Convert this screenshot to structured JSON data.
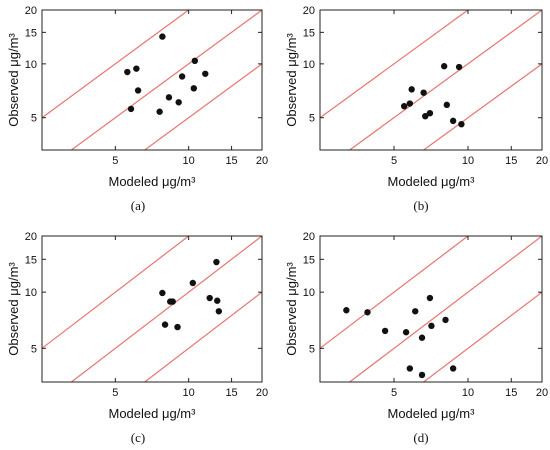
{
  "colors": {
    "reference_line": "#e8746e",
    "point": "#111111",
    "frame": "#222222"
  },
  "chart_data": [
    {
      "type": "scatter",
      "panel_label": "(a)",
      "xlabel": "Modeled μg/m³",
      "ylabel": "Observed μg/m³",
      "xscale": "log",
      "yscale": "log",
      "xlim": [
        2.5,
        20
      ],
      "ylim": [
        3.3,
        20
      ],
      "xticks": [
        5,
        10,
        15,
        20
      ],
      "yticks": [
        5,
        10,
        15,
        20
      ],
      "reference_lines": [
        "y = 2x",
        "y = x",
        "y = x/2"
      ],
      "points": [
        [
          5.6,
          9.0
        ],
        [
          6.1,
          9.4
        ],
        [
          6.2,
          7.1
        ],
        [
          5.8,
          5.6
        ],
        [
          7.8,
          14.2
        ],
        [
          7.6,
          5.4
        ],
        [
          8.3,
          6.5
        ],
        [
          9.1,
          6.1
        ],
        [
          9.4,
          8.5
        ],
        [
          10.6,
          10.4
        ],
        [
          10.5,
          7.3
        ],
        [
          11.7,
          8.8
        ]
      ]
    },
    {
      "type": "scatter",
      "panel_label": "(b)",
      "xlabel": "Modeled μg/m³",
      "ylabel": "Observed μg/m³",
      "xscale": "log",
      "yscale": "log",
      "xlim": [
        2.5,
        20
      ],
      "ylim": [
        3.3,
        20
      ],
      "xticks": [
        5,
        10,
        15,
        20
      ],
      "yticks": [
        5,
        10,
        15,
        20
      ],
      "reference_lines": [
        "y = 2x",
        "y = x",
        "y = x/2"
      ],
      "points": [
        [
          5.5,
          5.8
        ],
        [
          5.8,
          6.0
        ],
        [
          5.9,
          7.2
        ],
        [
          6.6,
          6.9
        ],
        [
          6.7,
          5.1
        ],
        [
          7.0,
          5.3
        ],
        [
          8.0,
          9.7
        ],
        [
          8.2,
          5.9
        ],
        [
          8.7,
          4.8
        ],
        [
          9.2,
          9.6
        ],
        [
          9.4,
          4.6
        ]
      ]
    },
    {
      "type": "scatter",
      "panel_label": "(c)",
      "xlabel": "Modeled μg/m³",
      "ylabel": "Observed μg/m³",
      "xscale": "log",
      "yscale": "log",
      "xlim": [
        2.5,
        20
      ],
      "ylim": [
        3.3,
        20
      ],
      "xticks": [
        5,
        10,
        15,
        20
      ],
      "yticks": [
        5,
        10,
        15,
        20
      ],
      "reference_lines": [
        "y = 2x",
        "y = x",
        "y = x/2"
      ],
      "points": [
        [
          7.8,
          9.9
        ],
        [
          8.0,
          6.7
        ],
        [
          8.4,
          8.9
        ],
        [
          8.6,
          8.9
        ],
        [
          9.0,
          6.5
        ],
        [
          10.4,
          11.2
        ],
        [
          12.2,
          9.3
        ],
        [
          13.1,
          9.0
        ],
        [
          13.0,
          14.5
        ],
        [
          13.3,
          7.9
        ]
      ]
    },
    {
      "type": "scatter",
      "panel_label": "(d)",
      "xlabel": "Modeled μg/m³",
      "ylabel": "Observed μg/m³",
      "xscale": "log",
      "yscale": "log",
      "xlim": [
        2.5,
        20
      ],
      "ylim": [
        3.3,
        20
      ],
      "xticks": [
        5,
        10,
        15,
        20
      ],
      "yticks": [
        5,
        10,
        15,
        20
      ],
      "reference_lines": [
        "y = 2x",
        "y = x",
        "y = x/2"
      ],
      "points": [
        [
          3.2,
          8.0
        ],
        [
          3.9,
          7.8
        ],
        [
          4.6,
          6.2
        ],
        [
          5.6,
          6.1
        ],
        [
          5.8,
          3.9
        ],
        [
          6.1,
          7.9
        ],
        [
          6.5,
          5.7
        ],
        [
          6.5,
          3.6
        ],
        [
          7.0,
          9.3
        ],
        [
          7.1,
          6.6
        ],
        [
          8.1,
          7.1
        ],
        [
          8.7,
          3.9
        ]
      ]
    }
  ]
}
